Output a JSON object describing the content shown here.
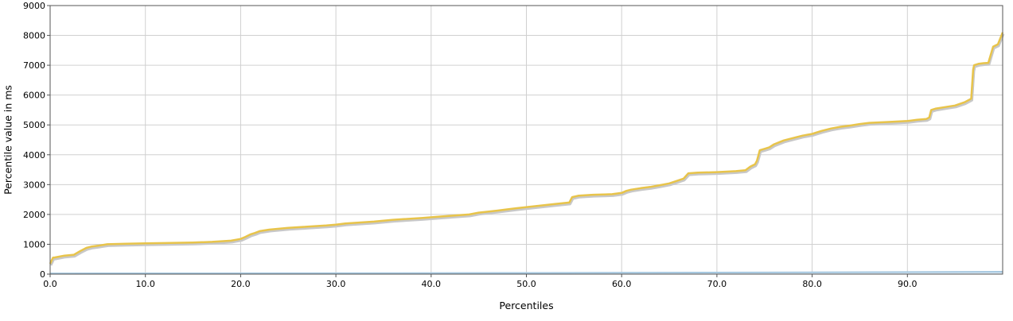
{
  "chart_data": {
    "type": "line",
    "xlabel": "Percentiles",
    "ylabel": "Percentile value in ms",
    "xlim": [
      0,
      100
    ],
    "ylim": [
      0,
      9000
    ],
    "x_ticks": [
      0,
      10,
      20,
      30,
      40,
      50,
      60,
      70,
      80,
      90
    ],
    "x_tick_labels": [
      "0.0",
      "10.0",
      "20.0",
      "30.0",
      "40.0",
      "50.0",
      "60.0",
      "70.0",
      "80.0",
      "90.0"
    ],
    "y_ticks": [
      0,
      1000,
      2000,
      3000,
      4000,
      5000,
      6000,
      7000,
      8000,
      9000
    ],
    "y_tick_labels": [
      "0",
      "1000",
      "2000",
      "3000",
      "4000",
      "5000",
      "6000",
      "7000",
      "8000",
      "9000"
    ],
    "grid": true,
    "legend": "none",
    "series": [
      {
        "color": "#e8c44a",
        "x": [
          0,
          0.3,
          0.5,
          1.5,
          2.5,
          3.2,
          3.8,
          4.3,
          5,
          6,
          8,
          10,
          12,
          15,
          17,
          19,
          20,
          20.5,
          21,
          21.5,
          22,
          23,
          25,
          27,
          29,
          30,
          31,
          34,
          36,
          39,
          41,
          44,
          45,
          47,
          49,
          51,
          53,
          54.5,
          54.8,
          55.5,
          57,
          59,
          60,
          60.5,
          61,
          62,
          63,
          64,
          65,
          66.5,
          67,
          68,
          70,
          72,
          73,
          73.5,
          74,
          74.2,
          74.5,
          75,
          75.5,
          76,
          77,
          78,
          79,
          80,
          81,
          82,
          83,
          84,
          85,
          86,
          88,
          90,
          91,
          92,
          92.3,
          92.5,
          93,
          94,
          95,
          96,
          96.7,
          96.9,
          97,
          97.5,
          98,
          98.5,
          99,
          99.5,
          100
        ],
        "y": [
          350,
          550,
          560,
          620,
          650,
          780,
          880,
          920,
          950,
          1000,
          1020,
          1030,
          1040,
          1060,
          1080,
          1120,
          1180,
          1250,
          1330,
          1380,
          1440,
          1490,
          1550,
          1590,
          1630,
          1660,
          1700,
          1760,
          1820,
          1880,
          1930,
          2000,
          2060,
          2130,
          2210,
          2280,
          2350,
          2400,
          2580,
          2630,
          2660,
          2680,
          2720,
          2790,
          2830,
          2880,
          2920,
          2980,
          3040,
          3200,
          3380,
          3400,
          3420,
          3450,
          3480,
          3600,
          3680,
          3800,
          4150,
          4200,
          4250,
          4350,
          4480,
          4560,
          4640,
          4700,
          4800,
          4880,
          4940,
          4980,
          5030,
          5070,
          5100,
          5130,
          5170,
          5200,
          5250,
          5500,
          5550,
          5600,
          5650,
          5760,
          5880,
          6850,
          7000,
          7050,
          7070,
          7080,
          7620,
          7700,
          8100
        ]
      },
      {
        "color": "#a6c8e0",
        "x": [
          0,
          25,
          50,
          75,
          100
        ],
        "y": [
          25,
          30,
          40,
          55,
          80
        ]
      }
    ]
  }
}
